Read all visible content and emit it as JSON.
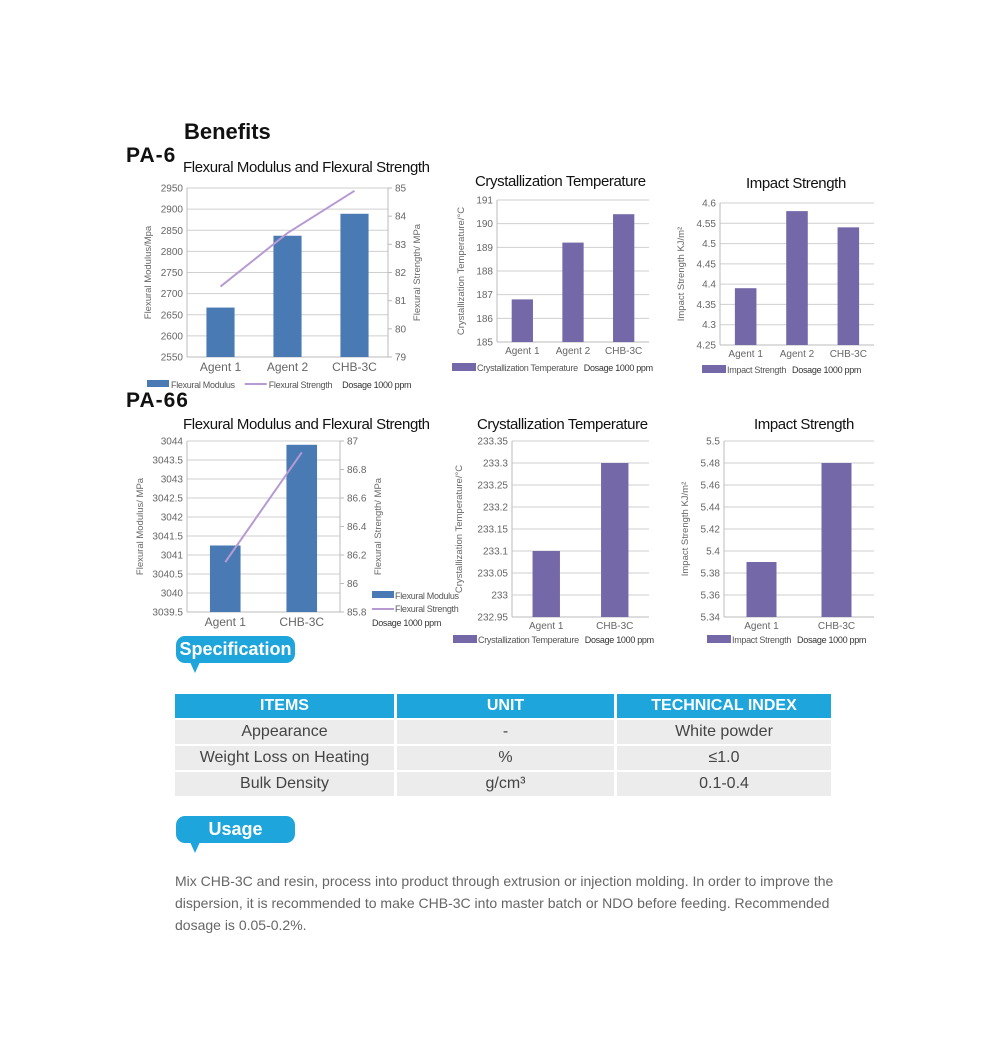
{
  "headings": {
    "benefits": "Benefits",
    "pa6": "PA-6",
    "pa66": "PA-66"
  },
  "colors": {
    "bar_blue": "#4a7ab3",
    "line_purple": "#b79ad2",
    "bar_purple": "#7568a8",
    "accent": "#1ea5dc"
  },
  "chart_data": [
    {
      "id": "pa6-flex",
      "type": "bar+line",
      "title": "Flexural Modulus and Flexural Strength",
      "categories": [
        "Agent 1",
        "Agent 2",
        "CHB-3C"
      ],
      "ylabel": "Flexural Modulus/Mpa",
      "y2label": "Flexural Strength/ MPa",
      "ylim": [
        2550,
        2950
      ],
      "ystep": 50,
      "y2lim": [
        79,
        85
      ],
      "y2step": 1,
      "series": [
        {
          "name": "Flexural Modulus",
          "type": "bar",
          "values": [
            2667,
            2837,
            2889
          ]
        },
        {
          "name": "Flexural Strength",
          "type": "line",
          "axis": "right",
          "values": [
            81.5,
            83.4,
            84.9
          ]
        }
      ],
      "note": "Dosage 1000 ppm",
      "legend": "bottom",
      "grid": true
    },
    {
      "id": "pa6-cryst",
      "type": "bar",
      "title": "Crystallization Temperature",
      "categories": [
        "Agent 1",
        "Agent 2",
        "CHB-3C"
      ],
      "ylabel": "Crystallization Temperature/°C",
      "ylim": [
        185,
        191
      ],
      "ystep": 1,
      "series": [
        {
          "name": "Crystallization Temperature",
          "values": [
            186.8,
            189.2,
            190.4
          ]
        }
      ],
      "note": "Dosage 1000 ppm",
      "legend": "bottom",
      "grid": true
    },
    {
      "id": "pa6-impact",
      "type": "bar",
      "title": "Impact Strength",
      "categories": [
        "Agent 1",
        "Agent 2",
        "CHB-3C"
      ],
      "ylabel": "Impact Strength KJ/m²",
      "ylim": [
        4.25,
        4.6
      ],
      "ystep": 0.05,
      "series": [
        {
          "name": "Impact Strength",
          "values": [
            4.39,
            4.58,
            4.54
          ]
        }
      ],
      "note": "Dosage 1000 ppm",
      "legend": "bottom",
      "grid": true
    },
    {
      "id": "pa66-flex",
      "type": "bar+line",
      "title": "Flexural Modulus and Flexural Strength",
      "categories": [
        "Agent 1",
        "CHB-3C"
      ],
      "ylabel": "Flexural Modulus/ MPa",
      "y2label": "Flexural Strength/ MPa",
      "ylim": [
        3039.5,
        3044
      ],
      "ystep": 0.5,
      "y2lim": [
        85.8,
        87
      ],
      "y2step": 0.2,
      "series": [
        {
          "name": "Flexural Modulus",
          "type": "bar",
          "values": [
            3041.25,
            3043.9
          ]
        },
        {
          "name": "Flexural Strength",
          "type": "line",
          "axis": "right",
          "values": [
            86.15,
            86.92
          ]
        }
      ],
      "note": "Dosage 1000 ppm",
      "legend": "right",
      "grid": true
    },
    {
      "id": "pa66-cryst",
      "type": "bar",
      "title": "Crystallization Temperature",
      "categories": [
        "Agent 1",
        "CHB-3C"
      ],
      "ylabel": "Crystallization Temperature/°C",
      "ylim": [
        232.95,
        233.35
      ],
      "ystep": 0.05,
      "series": [
        {
          "name": "Crystallization Temperature",
          "values": [
            233.1,
            233.3
          ]
        }
      ],
      "note": "Dosage 1000 ppm",
      "legend": "bottom",
      "grid": true
    },
    {
      "id": "pa66-impact",
      "type": "bar",
      "title": "Impact Strength",
      "categories": [
        "Agent 1",
        "CHB-3C"
      ],
      "ylabel": "Impact Strength KJ/m²",
      "ylim": [
        5.34,
        5.5
      ],
      "ystep": 0.02,
      "series": [
        {
          "name": "Impact Strength",
          "values": [
            5.39,
            5.48
          ]
        }
      ],
      "note": "Dosage 1000 ppm",
      "legend": "bottom",
      "grid": true
    }
  ],
  "specification": {
    "title": "Specification",
    "headers": [
      "ITEMS",
      "UNIT",
      "TECHNICAL INDEX"
    ],
    "rows": [
      [
        "Appearance",
        "-",
        "White powder"
      ],
      [
        "Weight Loss on Heating",
        "%",
        "≤1.0"
      ],
      [
        "Bulk Density",
        "g/cm³",
        "0.1-0.4"
      ]
    ]
  },
  "usage": {
    "title": "Usage",
    "text": "Mix CHB-3C and resin, process into product through extrusion or injection molding. In order to improve the dispersion, it is recommended to make CHB-3C into master batch or NDO before feeding. Recommended dosage is 0.05-0.2%."
  }
}
